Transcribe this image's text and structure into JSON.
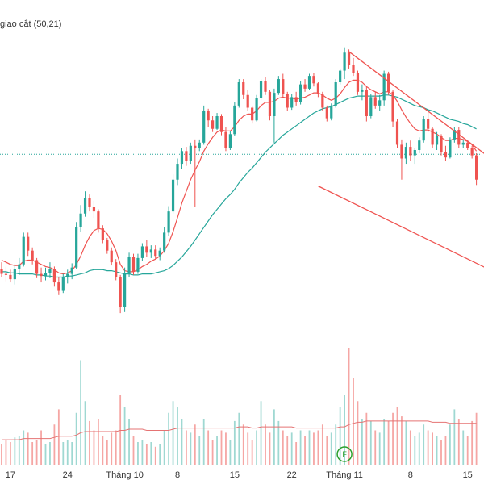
{
  "indicator_label": "giao cắt (50,21)",
  "marker": {
    "text": "F",
    "at_tick": "Tháng 11"
  },
  "colors": {
    "up": "#26a69a",
    "down": "#ef5350",
    "vol_up": "#9fd8d2",
    "vol_down": "#f5a6a4",
    "ma_fast": "#ef5350",
    "ma_slow": "#26a69a",
    "trendline": "#ef5350",
    "dotted_line": "#26a69a",
    "vol_ma": "#e57373",
    "marker": "#2ca02c"
  },
  "chart_data": {
    "type": "candlestick",
    "x_ticks": [
      "17",
      "24",
      "Tháng 10",
      "8",
      "15",
      "22",
      "Tháng 11",
      "8",
      "15"
    ],
    "y_axis_visible": false,
    "grid": false,
    "dotted_level": 51.0,
    "ylim": [
      29,
      61
    ],
    "vol_ylim": [
      0,
      100
    ],
    "candles": [
      [
        40.2,
        40.8,
        39.4,
        39.7,
        18
      ],
      [
        39.7,
        40.4,
        39.0,
        39.6,
        22
      ],
      [
        39.6,
        40.1,
        38.9,
        39.2,
        20
      ],
      [
        39.2,
        40.6,
        38.7,
        40.2,
        24
      ],
      [
        40.2,
        41.2,
        39.6,
        40.6,
        25
      ],
      [
        40.6,
        43.6,
        40.4,
        43.2,
        30
      ],
      [
        43.2,
        43.6,
        41.4,
        41.9,
        28
      ],
      [
        41.9,
        42.2,
        40.6,
        41.0,
        20
      ],
      [
        41.0,
        41.2,
        39.3,
        39.7,
        22
      ],
      [
        39.7,
        40.3,
        38.9,
        39.5,
        30
      ],
      [
        39.5,
        40.3,
        39.1,
        39.8,
        18
      ],
      [
        39.8,
        40.8,
        39.3,
        40.2,
        20
      ],
      [
        40.2,
        40.4,
        38.5,
        38.9,
        35
      ],
      [
        38.9,
        39.4,
        37.7,
        38.1,
        48
      ],
      [
        38.1,
        39.7,
        37.9,
        39.4,
        20
      ],
      [
        39.4,
        40.1,
        38.8,
        39.7,
        22
      ],
      [
        39.7,
        40.7,
        39.2,
        40.3,
        20
      ],
      [
        40.3,
        44.6,
        40.2,
        44.1,
        45
      ],
      [
        44.1,
        46.2,
        43.7,
        45.4,
        90
      ],
      [
        45.4,
        47.5,
        45.1,
        46.9,
        55
      ],
      [
        46.9,
        47.2,
        45.6,
        46.0,
        38
      ],
      [
        46.0,
        46.6,
        45.0,
        45.6,
        30
      ],
      [
        45.6,
        45.8,
        43.6,
        44.0,
        40
      ],
      [
        44.0,
        44.3,
        42.6,
        42.9,
        25
      ],
      [
        42.9,
        43.1,
        41.6,
        41.9,
        22
      ],
      [
        41.9,
        42.2,
        40.5,
        40.8,
        28
      ],
      [
        40.8,
        41.1,
        39.1,
        39.4,
        30
      ],
      [
        39.4,
        39.6,
        36.0,
        36.6,
        60
      ],
      [
        36.6,
        40.3,
        36.1,
        39.7,
        50
      ],
      [
        39.7,
        41.7,
        39.4,
        41.3,
        40
      ],
      [
        41.3,
        41.6,
        39.6,
        39.9,
        25
      ],
      [
        39.9,
        41.6,
        39.7,
        41.2,
        20
      ],
      [
        41.2,
        42.6,
        40.9,
        42.3,
        22
      ],
      [
        42.3,
        42.9,
        41.3,
        41.7,
        18
      ],
      [
        41.7,
        42.4,
        41.2,
        42.0,
        20
      ],
      [
        42.0,
        42.4,
        41.1,
        41.4,
        16
      ],
      [
        41.4,
        42.2,
        41.0,
        41.9,
        18
      ],
      [
        41.9,
        44.1,
        41.7,
        43.6,
        30
      ],
      [
        43.6,
        46.1,
        43.3,
        45.6,
        45
      ],
      [
        45.6,
        49.1,
        45.4,
        48.6,
        55
      ],
      [
        48.6,
        50.6,
        48.1,
        50.1,
        50
      ],
      [
        50.1,
        51.6,
        49.6,
        51.3,
        40
      ],
      [
        51.3,
        51.7,
        49.9,
        50.4,
        30
      ],
      [
        50.4,
        52.1,
        50.1,
        51.8,
        28
      ],
      [
        51.8,
        52.4,
        46.0,
        51.6,
        35
      ],
      [
        51.6,
        52.4,
        51.3,
        52.1,
        25
      ],
      [
        52.1,
        55.6,
        51.9,
        55.1,
        40
      ],
      [
        55.1,
        55.3,
        53.6,
        54.2,
        30
      ],
      [
        54.2,
        54.6,
        53.1,
        53.4,
        22
      ],
      [
        53.4,
        54.9,
        53.3,
        54.6,
        25
      ],
      [
        54.6,
        54.8,
        52.8,
        53.1,
        30
      ],
      [
        53.1,
        53.6,
        51.3,
        51.6,
        28
      ],
      [
        51.6,
        53.2,
        51.4,
        52.9,
        22
      ],
      [
        52.9,
        55.9,
        52.7,
        55.6,
        38
      ],
      [
        55.6,
        58.1,
        55.4,
        57.8,
        45
      ],
      [
        57.8,
        58.1,
        56.2,
        56.6,
        35
      ],
      [
        56.6,
        57.1,
        55.1,
        55.4,
        28
      ],
      [
        55.4,
        55.6,
        53.9,
        54.2,
        22
      ],
      [
        54.2,
        56.6,
        54.1,
        56.3,
        30
      ],
      [
        56.3,
        58.1,
        56.1,
        57.9,
        55
      ],
      [
        57.9,
        58.3,
        56.6,
        56.9,
        35
      ],
      [
        56.9,
        57.1,
        54.2,
        54.6,
        28
      ],
      [
        54.6,
        57.2,
        52.1,
        56.8,
        48
      ],
      [
        56.8,
        58.4,
        56.6,
        58.1,
        38
      ],
      [
        58.1,
        58.6,
        56.4,
        56.7,
        30
      ],
      [
        56.7,
        56.9,
        55.1,
        55.4,
        25
      ],
      [
        55.4,
        56.7,
        55.2,
        56.4,
        28
      ],
      [
        56.4,
        56.9,
        55.6,
        55.9,
        20
      ],
      [
        55.9,
        57.9,
        55.7,
        57.6,
        30
      ],
      [
        57.6,
        58.1,
        56.9,
        57.2,
        25
      ],
      [
        57.2,
        58.6,
        57.1,
        58.4,
        30
      ],
      [
        58.4,
        58.7,
        57.4,
        57.7,
        28
      ],
      [
        57.7,
        57.8,
        56.4,
        56.7,
        30
      ],
      [
        56.7,
        56.9,
        55.1,
        55.4,
        35
      ],
      [
        55.4,
        55.6,
        54.1,
        54.4,
        25
      ],
      [
        54.4,
        55.8,
        54.2,
        55.6,
        28
      ],
      [
        55.6,
        58.1,
        55.4,
        57.8,
        35
      ],
      [
        57.8,
        59.1,
        57.6,
        58.9,
        50
      ],
      [
        58.9,
        61.1,
        58.1,
        60.6,
        60
      ],
      [
        60.6,
        60.9,
        59.1,
        59.4,
        100
      ],
      [
        59.4,
        60.1,
        58.4,
        58.7,
        75
      ],
      [
        58.7,
        58.9,
        56.6,
        56.9,
        55
      ],
      [
        56.9,
        57.6,
        56.1,
        57.1,
        40
      ],
      [
        57.1,
        57.4,
        54.1,
        54.6,
        45
      ],
      [
        54.6,
        56.7,
        54.4,
        56.4,
        38
      ],
      [
        56.4,
        56.9,
        55.3,
        55.6,
        30
      ],
      [
        55.6,
        56.6,
        55.1,
        56.1,
        28
      ],
      [
        56.1,
        58.9,
        55.6,
        58.6,
        40
      ],
      [
        58.6,
        58.8,
        56.6,
        56.9,
        38
      ],
      [
        56.9,
        57.1,
        53.6,
        54.1,
        45
      ],
      [
        54.1,
        54.3,
        51.6,
        51.9,
        50
      ],
      [
        51.9,
        52.4,
        48.6,
        50.6,
        42
      ],
      [
        50.6,
        52.1,
        50.1,
        51.7,
        38
      ],
      [
        51.7,
        52.3,
        50.4,
        50.9,
        30
      ],
      [
        50.9,
        51.6,
        50.1,
        51.4,
        25
      ],
      [
        51.4,
        52.6,
        51.1,
        52.3,
        28
      ],
      [
        52.3,
        54.6,
        52.1,
        54.3,
        35
      ],
      [
        54.3,
        55.1,
        53.1,
        53.4,
        30
      ],
      [
        53.4,
        53.6,
        51.6,
        51.9,
        28
      ],
      [
        51.9,
        53.1,
        51.4,
        52.7,
        25
      ],
      [
        52.7,
        52.9,
        50.9,
        51.2,
        22
      ],
      [
        51.2,
        51.8,
        50.4,
        50.7,
        25
      ],
      [
        50.7,
        52.6,
        50.6,
        52.4,
        35
      ],
      [
        52.4,
        53.6,
        52.1,
        53.3,
        48
      ],
      [
        53.3,
        53.6,
        51.6,
        51.9,
        40
      ],
      [
        51.9,
        52.4,
        51.6,
        52.1,
        30
      ],
      [
        52.1,
        52.3,
        51.4,
        51.6,
        25
      ],
      [
        51.6,
        51.8,
        50.6,
        50.9,
        38
      ],
      [
        50.9,
        51.1,
        48.1,
        48.6,
        45
      ]
    ],
    "ma_fast": [
      41.0,
      40.8,
      40.6,
      40.5,
      40.5,
      40.9,
      41.0,
      41.0,
      40.8,
      40.6,
      40.4,
      40.3,
      40.1,
      39.8,
      39.7,
      39.8,
      40.0,
      40.6,
      41.4,
      42.4,
      43.2,
      43.8,
      44.0,
      43.9,
      43.5,
      42.8,
      41.9,
      40.6,
      40.0,
      39.9,
      39.9,
      40.1,
      40.4,
      40.6,
      40.9,
      41.1,
      41.4,
      41.9,
      42.6,
      43.7,
      45.0,
      46.4,
      47.5,
      48.6,
      49.5,
      50.3,
      51.3,
      52.0,
      52.6,
      53.1,
      53.3,
      53.2,
      53.2,
      53.6,
      54.2,
      54.6,
      54.8,
      54.8,
      55.1,
      55.6,
      55.9,
      55.9,
      56.0,
      56.3,
      56.4,
      56.3,
      56.3,
      56.2,
      56.3,
      56.4,
      56.6,
      56.8,
      56.8,
      56.6,
      56.3,
      56.1,
      56.3,
      56.7,
      57.3,
      57.8,
      58.0,
      58.0,
      57.8,
      57.4,
      57.1,
      56.9,
      56.7,
      56.9,
      56.9,
      56.6,
      56.0,
      55.2,
      54.5,
      53.9,
      53.4,
      53.2,
      53.3,
      53.3,
      53.1,
      52.9,
      52.6,
      52.3,
      52.3,
      52.5,
      52.5,
      52.4,
      52.2,
      51.9,
      51.3
    ],
    "ma_slow": [
      39.9,
      39.9,
      39.8,
      39.8,
      39.7,
      39.7,
      39.7,
      39.7,
      39.6,
      39.6,
      39.5,
      39.5,
      39.4,
      39.4,
      39.4,
      39.5,
      39.5,
      39.6,
      39.7,
      39.8,
      40.0,
      40.1,
      40.1,
      40.1,
      40.0,
      40.0,
      39.9,
      39.8,
      39.7,
      39.7,
      39.6,
      39.6,
      39.7,
      39.7,
      39.7,
      39.8,
      39.9,
      40.0,
      40.2,
      40.5,
      40.9,
      41.3,
      41.8,
      42.3,
      42.9,
      43.5,
      44.1,
      44.7,
      45.3,
      45.8,
      46.3,
      46.8,
      47.2,
      47.7,
      48.3,
      48.8,
      49.3,
      49.7,
      50.2,
      50.7,
      51.2,
      51.6,
      52.0,
      52.4,
      52.8,
      53.1,
      53.4,
      53.7,
      54.0,
      54.3,
      54.6,
      54.9,
      55.1,
      55.3,
      55.4,
      55.5,
      55.7,
      55.9,
      56.1,
      56.3,
      56.4,
      56.5,
      56.5,
      56.5,
      56.5,
      56.5,
      56.5,
      56.6,
      56.6,
      56.5,
      56.4,
      56.2,
      56.0,
      55.8,
      55.6,
      55.5,
      55.4,
      55.2,
      55.1,
      54.9,
      54.7,
      54.5,
      54.3,
      54.2,
      54.1,
      53.9,
      53.8,
      53.6,
      53.4
    ],
    "vol_ma": [
      22,
      22,
      22,
      22,
      22,
      23,
      23,
      23,
      23,
      23,
      23,
      23,
      24,
      25,
      25,
      25,
      25,
      26,
      28,
      29,
      29,
      29,
      29,
      29,
      29,
      29,
      29,
      30,
      30,
      31,
      31,
      31,
      31,
      30,
      30,
      30,
      30,
      30,
      30,
      31,
      32,
      32,
      32,
      32,
      32,
      32,
      32,
      32,
      32,
      32,
      32,
      32,
      32,
      32,
      33,
      33,
      33,
      32,
      32,
      33,
      33,
      33,
      33,
      33,
      33,
      33,
      33,
      32,
      32,
      32,
      32,
      32,
      32,
      32,
      32,
      32,
      32,
      33,
      33,
      35,
      36,
      37,
      37,
      38,
      38,
      38,
      38,
      38,
      38,
      38,
      38,
      38,
      38,
      38,
      38,
      38,
      38,
      38,
      37,
      37,
      37,
      37,
      36,
      36,
      36,
      36,
      36,
      36,
      36
    ],
    "trendlines": [
      {
        "from": [
          79,
          60.7
        ],
        "to": [
          110,
          51.0
        ]
      },
      {
        "from": [
          72,
          48.0
        ],
        "to": [
          110,
          40.3
        ]
      }
    ]
  }
}
